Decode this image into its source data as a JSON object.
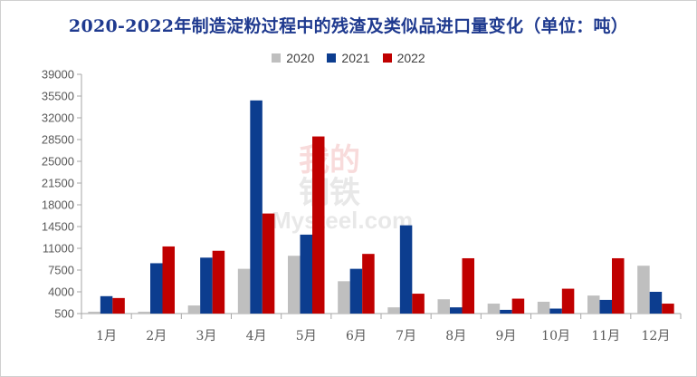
{
  "chart_data": {
    "type": "bar",
    "title": "2020-2022年制造淀粉过程中的残渣及类似品进口量变化（单位：吨）",
    "xlabel": "",
    "ylabel": "",
    "categories": [
      "1月",
      "2月",
      "3月",
      "4月",
      "5月",
      "6月",
      "7月",
      "8月",
      "9月",
      "10月",
      "11月",
      "12月"
    ],
    "y_ticks": [
      "500",
      "4000",
      "7500",
      "11000",
      "14500",
      "18000",
      "21500",
      "25000",
      "28500",
      "32000",
      "35500",
      "39000"
    ],
    "ylim": [
      500,
      39000
    ],
    "grid": false,
    "legend_position": "top-center",
    "series": [
      {
        "name": "2020",
        "color": "#bfbfbf",
        "values": [
          800,
          800,
          1800,
          7700,
          9800,
          5700,
          1500,
          2800,
          2100,
          2400,
          3400,
          8200
        ]
      },
      {
        "name": "2021",
        "color": "#0c3d8f",
        "values": [
          3300,
          8600,
          9500,
          34800,
          13200,
          7700,
          14700,
          1500,
          1100,
          1300,
          2700,
          4000
        ]
      },
      {
        "name": "2022",
        "color": "#c00000",
        "values": [
          3000,
          11300,
          10600,
          16600,
          29000,
          10100,
          3700,
          9400,
          2900,
          4500,
          9400,
          2100
        ]
      }
    ]
  },
  "watermark": {
    "line1": "我的",
    "line2": "钢铁",
    "brand": "Mysteel.com"
  }
}
